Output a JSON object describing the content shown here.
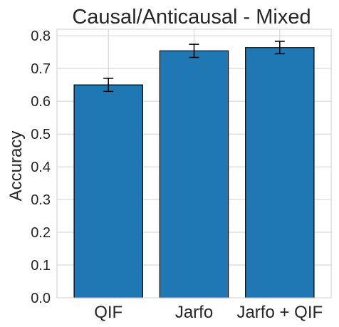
{
  "chart_data": {
    "type": "bar",
    "title": "Causal/Anticausal - Mixed",
    "xlabel": "",
    "ylabel": "Accuracy",
    "categories": [
      "QIF",
      "Jarfo",
      "Jarfo + QIF"
    ],
    "values": [
      0.65,
      0.754,
      0.764
    ],
    "errors": [
      0.02,
      0.02,
      0.019
    ],
    "ylim": [
      0,
      0.82
    ],
    "yticks": [
      0.0,
      0.1,
      0.2,
      0.3,
      0.4,
      0.5,
      0.6,
      0.7,
      0.8
    ],
    "ytick_labels": [
      "0.0",
      "0.1",
      "0.2",
      "0.3",
      "0.4",
      "0.5",
      "0.6",
      "0.7",
      "0.8"
    ],
    "grid": true,
    "colors": {
      "bar": "#1f77b4",
      "edge": "#000000",
      "grid": "#d0d0d0",
      "text": "#262626"
    }
  }
}
